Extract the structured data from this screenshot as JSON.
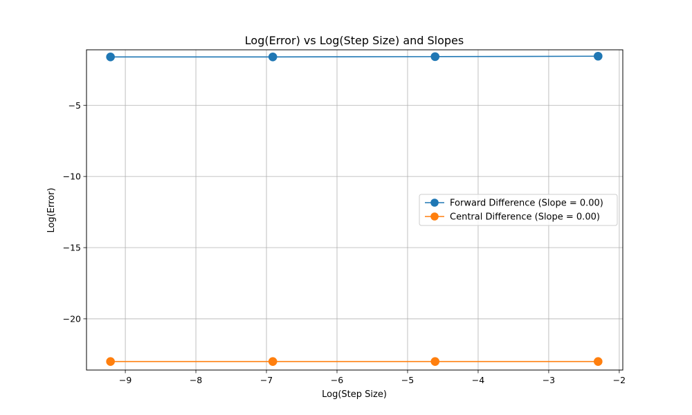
{
  "chart_data": {
    "type": "line",
    "title": "Log(Error) vs Log(Step Size) and Slopes",
    "xlabel": "Log(Step Size)",
    "ylabel": "Log(Error)",
    "xlim": [
      -9.55,
      -1.95
    ],
    "ylim": [
      -23.6,
      -1.1
    ],
    "xticks": [
      -9,
      -8,
      -7,
      -6,
      -5,
      -4,
      -3,
      -2
    ],
    "xtick_labels": [
      "−9",
      "−8",
      "−7",
      "−6",
      "−5",
      "−4",
      "−3",
      "−2"
    ],
    "yticks": [
      -5,
      -10,
      -15,
      -20
    ],
    "ytick_labels": [
      "−5",
      "−10",
      "−15",
      "−20"
    ],
    "grid": true,
    "legend_position": "center-right",
    "x": [
      -9.21,
      -6.91,
      -4.61,
      -2.3
    ],
    "series": [
      {
        "name": "Forward Difference (Slope = 0.00)",
        "color": "#1f77b4",
        "values": [
          -1.6,
          -1.6,
          -1.58,
          -1.55
        ]
      },
      {
        "name": "Central Difference (Slope = 0.00)",
        "color": "#ff7f0e",
        "values": [
          -23.0,
          -23.0,
          -23.0,
          -23.0
        ]
      }
    ]
  }
}
